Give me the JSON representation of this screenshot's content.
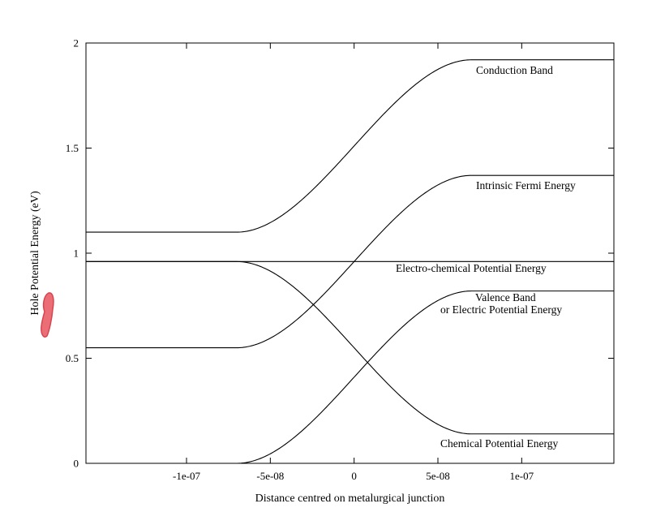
{
  "chart_data": {
    "type": "line",
    "title": "",
    "xlabel": "Distance centred on metalurgical junction",
    "ylabel": "Hole Potential Energy (eV)",
    "xlim": [
      -1.6e-07,
      1.55e-07
    ],
    "ylim": [
      0,
      2
    ],
    "xticks": [
      {
        "value": -1e-07,
        "label": "-1e-07"
      },
      {
        "value": -5e-08,
        "label": "-5e-08"
      },
      {
        "value": 0,
        "label": "0"
      },
      {
        "value": 5e-08,
        "label": "5e-08"
      },
      {
        "value": 1e-07,
        "label": "1e-07"
      }
    ],
    "yticks": [
      {
        "value": 0,
        "label": "0"
      },
      {
        "value": 0.5,
        "label": "0.5"
      },
      {
        "value": 1,
        "label": "1"
      },
      {
        "value": 1.5,
        "label": "1.5"
      },
      {
        "value": 2,
        "label": "2"
      }
    ],
    "grid": false,
    "legend": "none",
    "depletion_edges": [
      -7e-08,
      7e-08
    ],
    "series": [
      {
        "name": "Conduction Band",
        "left_value": 1.1,
        "right_value": 1.92
      },
      {
        "name": "Intrinsic Fermi Energy",
        "left_value": 0.55,
        "right_value": 1.37
      },
      {
        "name": "Electro-chemical Potential Energy",
        "left_value": 0.96,
        "right_value": 0.96
      },
      {
        "name": "Valence  Band\nor Electric Potential Energy",
        "left_value": 0.0,
        "right_value": 0.82
      },
      {
        "name": "Chemical Potential Energy",
        "left_value": 0.96,
        "right_value": 0.14
      }
    ]
  }
}
